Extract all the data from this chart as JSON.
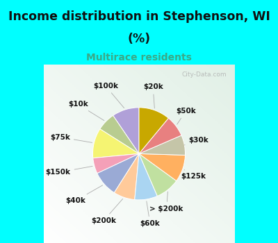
{
  "title_line1": "Income distribution in Stephenson, WI",
  "title_line2": "(%)",
  "subtitle": "Multirace residents",
  "title_color": "#111111",
  "subtitle_color": "#3aaa88",
  "bg_cyan": "#00ffff",
  "watermark": "City-Data.com",
  "labels": [
    "$100k",
    "$10k",
    "$75k",
    "$150k",
    "$40k",
    "$200k",
    "$60k",
    "> $200k",
    "$125k",
    "$30k",
    "$50k",
    "$20k"
  ],
  "values": [
    9.5,
    6.5,
    10.5,
    5.5,
    9.0,
    7.5,
    8.0,
    8.5,
    9.5,
    7.0,
    7.5,
    11.0
  ],
  "colors": [
    "#b0a0d8",
    "#b8cc90",
    "#f5f472",
    "#f4a0b8",
    "#9aaad5",
    "#ffca9a",
    "#aad5f2",
    "#c0e0a0",
    "#ffb060",
    "#c5c5a8",
    "#e88080",
    "#c8a800"
  ],
  "startangle": 90,
  "figsize": [
    4.0,
    3.5
  ],
  "dpi": 100,
  "title_fontsize": 12.5,
  "subtitle_fontsize": 10,
  "label_fontsize": 7.5
}
